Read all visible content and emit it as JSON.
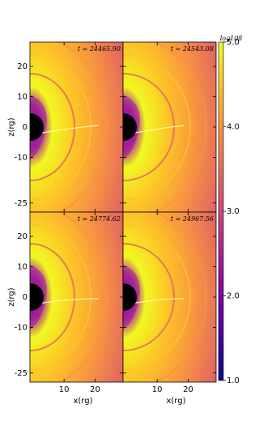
{
  "chart_data": [
    {
      "type": "image",
      "title": "t = 24465.90",
      "ylabel": "z(rg)",
      "xlim": [
        -1,
        29
      ],
      "ylim": [
        -28,
        28
      ],
      "yticks": [
        20,
        10,
        0,
        -10,
        -25
      ]
    },
    {
      "type": "image",
      "title": "t = 24543.08",
      "xlim": [
        -1,
        29
      ],
      "ylim": [
        -28,
        28
      ]
    },
    {
      "type": "image",
      "title": "t = 24774.62",
      "ylabel": "z(rg)",
      "xlabel": "x(rg)",
      "xlim": [
        -1,
        29
      ],
      "ylim": [
        -28,
        28
      ],
      "yticks": [
        20,
        10,
        0,
        -10,
        -25
      ],
      "xticks": [
        10,
        20
      ]
    },
    {
      "type": "image",
      "title": "t = 24967.56",
      "xlabel": "x(rg)",
      "xlim": [
        -1,
        29
      ],
      "ylim": [
        -28,
        28
      ],
      "xticks": [
        10,
        20
      ]
    },
    {
      "type": "colorbar",
      "title": "log10β",
      "ylim": [
        1,
        5
      ],
      "yticks": [
        {
          "value": 5,
          "label": "5.0"
        },
        {
          "value": 4,
          "label": "4.0"
        },
        {
          "value": 3,
          "label": "3.0"
        },
        {
          "value": 2,
          "label": "2.0"
        },
        {
          "value": 1,
          "label": "1.0"
        }
      ],
      "colormap": [
        "#0d0887",
        "#7e03a8",
        "#cc4778",
        "#f89540",
        "#f0f921"
      ]
    }
  ]
}
